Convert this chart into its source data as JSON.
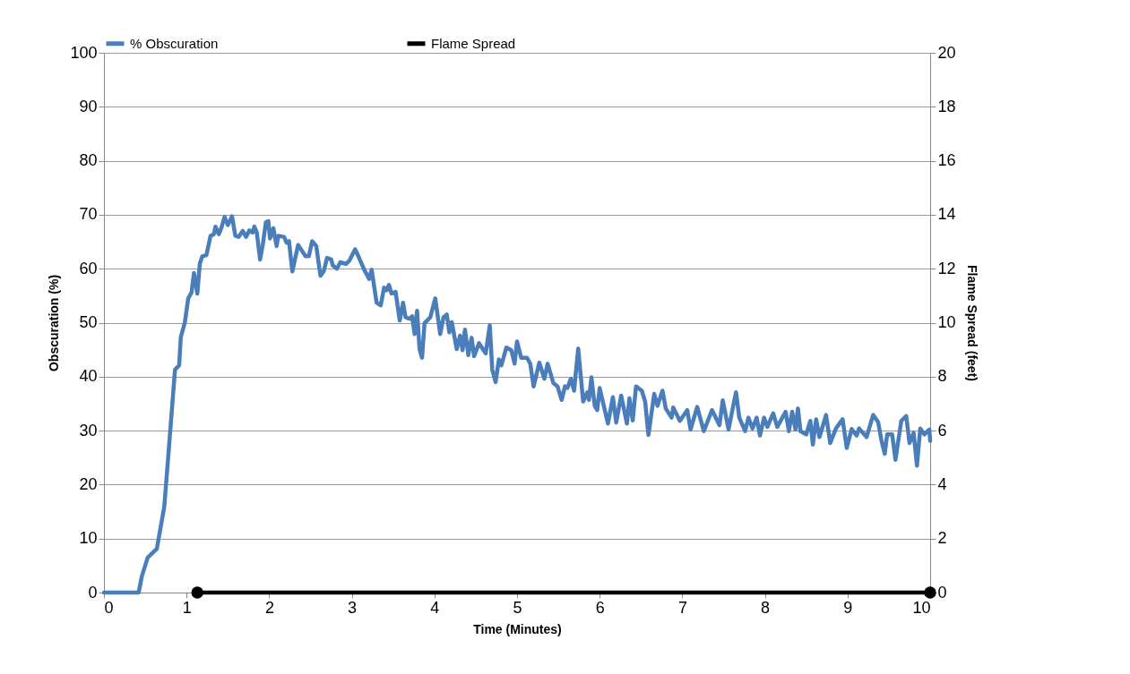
{
  "chart_data": {
    "type": "line",
    "xlabel": "Time (Minutes)",
    "ylabel": "Obscuration (%)",
    "y2label": "Flame Spread (feet)",
    "xlim": [
      0,
      10
    ],
    "xticks": [
      0,
      1,
      2,
      3,
      4,
      5,
      6,
      7,
      8,
      9,
      10
    ],
    "ylim": [
      0,
      100
    ],
    "yticks": [
      0,
      10,
      20,
      30,
      40,
      50,
      60,
      70,
      80,
      90,
      100
    ],
    "y2lim": [
      0,
      20
    ],
    "y2ticks": [
      0,
      2,
      4,
      6,
      8,
      10,
      12,
      14,
      16,
      18,
      20
    ],
    "grid": "y",
    "legend": "top",
    "line_style": "solid",
    "series": [
      {
        "name": "% Obscuration",
        "color": "#4a7ebb",
        "x": [
          0,
          0.42,
          0.46,
          0.53,
          0.64,
          0.73,
          0.77,
          0.86,
          0.91,
          0.93,
          0.98,
          1.02,
          1.06,
          1.09,
          1.13,
          1.16,
          1.19,
          1.24,
          1.29,
          1.33,
          1.35,
          1.39,
          1.42,
          1.46,
          1.5,
          1.55,
          1.59,
          1.63,
          1.68,
          1.72,
          1.76,
          1.8,
          1.82,
          1.85,
          1.89,
          1.92,
          1.96,
          1.99,
          2.01,
          2.05,
          2.09,
          2.11,
          2.18,
          2.21,
          2.24,
          2.28,
          2.35,
          2.44,
          2.48,
          2.52,
          2.57,
          2.62,
          2.66,
          2.7,
          2.75,
          2.77,
          2.82,
          2.86,
          2.93,
          2.97,
          3.04,
          3.08,
          3.15,
          3.21,
          3.24,
          3.3,
          3.35,
          3.39,
          3.42,
          3.45,
          3.48,
          3.53,
          3.58,
          3.62,
          3.65,
          3.7,
          3.73,
          3.76,
          3.79,
          3.82,
          3.85,
          3.88,
          3.95,
          4.01,
          4.07,
          4.11,
          4.15,
          4.18,
          4.21,
          4.27,
          4.31,
          4.34,
          4.37,
          4.41,
          4.45,
          4.48,
          4.54,
          4.62,
          4.67,
          4.7,
          4.74,
          4.78,
          4.81,
          4.87,
          4.93,
          4.97,
          5,
          5.05,
          5.12,
          5.16,
          5.2,
          5.27,
          5.33,
          5.37,
          5.44,
          5.49,
          5.54,
          5.58,
          5.61,
          5.65,
          5.69,
          5.74,
          5.8,
          5.85,
          5.87,
          5.9,
          5.94,
          5.97,
          6,
          6.1,
          6.16,
          6.2,
          6.26,
          6.33,
          6.36,
          6.4,
          6.44,
          6.51,
          6.55,
          6.59,
          6.66,
          6.7,
          6.76,
          6.8,
          6.87,
          6.89,
          6.97,
          7.06,
          7.1,
          7.18,
          7.26,
          7.36,
          7.45,
          7.49,
          7.56,
          7.61,
          7.65,
          7.69,
          7.76,
          7.8,
          7.85,
          7.9,
          7.94,
          7.99,
          8.03,
          8.1,
          8.15,
          8.25,
          8.29,
          8.33,
          8.37,
          8.4,
          8.43,
          8.5,
          8.55,
          8.58,
          8.62,
          8.66,
          8.74,
          8.79,
          8.86,
          8.94,
          8.99,
          9.05,
          9.11,
          9.14,
          9.23,
          9.31,
          9.37,
          9.41,
          9.45,
          9.48,
          9.54,
          9.58,
          9.65,
          9.71,
          9.75,
          9.8,
          9.84,
          9.88,
          9.93,
          9.99,
          10
        ],
        "values": [
          0,
          0,
          3.1,
          6.5,
          8.1,
          15.9,
          23.6,
          41.3,
          42.1,
          47.3,
          50.1,
          54.5,
          55.6,
          59.2,
          55.4,
          60.9,
          62.3,
          62.5,
          66.1,
          66.4,
          67.8,
          66.4,
          67.5,
          69.6,
          68.1,
          69.7,
          66.1,
          65.9,
          67,
          65.9,
          67.1,
          66.7,
          67.8,
          66.7,
          61.7,
          64.2,
          68.6,
          68.8,
          65.6,
          67.5,
          64.2,
          66.1,
          65.9,
          64.8,
          65.1,
          59.5,
          64.4,
          62.3,
          62.3,
          65.1,
          64.2,
          58.7,
          59.5,
          62,
          61.7,
          60.6,
          60,
          61.2,
          60.9,
          61.5,
          63.6,
          62.3,
          59.8,
          58.1,
          59.8,
          53.7,
          53.2,
          56.5,
          56,
          57,
          55.4,
          55.7,
          50.4,
          53.7,
          51,
          50.7,
          51.2,
          47.9,
          52.2,
          45.1,
          43.5,
          49.9,
          51,
          54.5,
          47.9,
          51,
          51.5,
          48.2,
          50.1,
          45.1,
          47.6,
          44.9,
          48.7,
          44,
          47.2,
          43.8,
          46.2,
          44.3,
          49.5,
          41.3,
          39,
          43.2,
          42.1,
          45.4,
          44.9,
          42.4,
          46.5,
          43.5,
          43.5,
          42.4,
          38.2,
          42.6,
          39.6,
          42.4,
          38.8,
          38.2,
          35.7,
          38.2,
          37.9,
          39.6,
          37.4,
          45.2,
          35.4,
          37.1,
          35.7,
          39.9,
          34.6,
          33.8,
          37.9,
          31.3,
          36.2,
          31.5,
          36.5,
          31.3,
          36,
          31.9,
          38.2,
          37.4,
          35.4,
          29.2,
          36.8,
          34.6,
          37.4,
          34.1,
          32.4,
          34.3,
          31.8,
          33.8,
          30.2,
          34.4,
          29.9,
          33.8,
          31,
          35.6,
          30.2,
          34.1,
          37.1,
          32.4,
          29.9,
          32.4,
          30.4,
          32.4,
          29.1,
          32.4,
          30.7,
          33.2,
          30.7,
          33.5,
          29.9,
          33.5,
          30.2,
          34.1,
          29.9,
          29.3,
          31.8,
          27.4,
          32.1,
          28.8,
          32.9,
          27.7,
          30.4,
          32.1,
          26.8,
          30.3,
          29.1,
          30.4,
          28.8,
          32.9,
          31.6,
          28.2,
          25.7,
          29.3,
          29.3,
          24.6,
          31.8,
          32.7,
          27.7,
          29.6,
          23.5,
          30.4,
          29.3,
          30.2,
          28.1
        ]
      },
      {
        "name": "Flame Spread",
        "color": "#000000",
        "axis": "y2",
        "marker": "circle",
        "x": [
          1.13,
          10
        ],
        "values": [
          0,
          0
        ]
      }
    ]
  }
}
